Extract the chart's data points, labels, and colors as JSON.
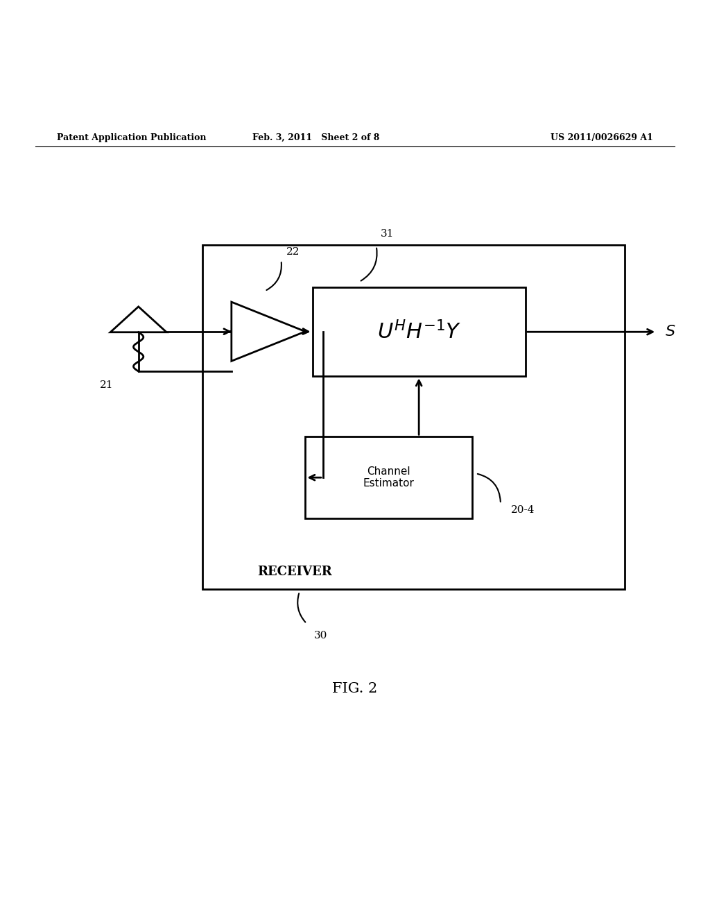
{
  "bg_color": "#ffffff",
  "header_left": "Patent Application Publication",
  "header_center": "Feb. 3, 2011   Sheet 2 of 8",
  "header_right": "US 2011/0026629 A1",
  "fig_label": "FIG. 2",
  "receiver_label": "RECEIVER",
  "label_21": "21",
  "label_22": "22",
  "label_31": "31",
  "label_20_4": "20-4",
  "label_30": "30",
  "math_text": "$U^{H}H^{-1}Y$",
  "channel_box_text": "Channel\nEstimator",
  "output_label": "$S$"
}
